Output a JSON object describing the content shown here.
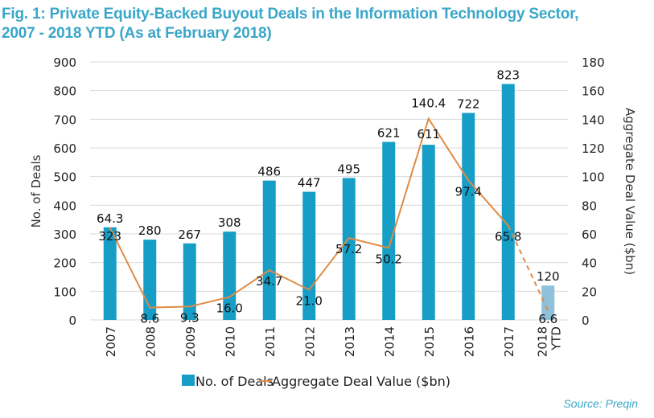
{
  "title_line1": "Fig. 1: Private Equity-Backed Buyout Deals in the Information Technology Sector,",
  "title_line2": "2007 - 2018 YTD (As at February 2018)",
  "source": "Source: Preqin",
  "colors": {
    "title": "#3aa6c8",
    "bar": "#169ec6",
    "bar_ytd": "#8fc1db",
    "line": "#e08b45",
    "grid": "#d9d9d9"
  },
  "chart_data": {
    "type": "bar",
    "title": "Fig. 1: Private Equity-Backed Buyout Deals in the Information Technology Sector, 2007 - 2018 YTD (As at February 2018)",
    "categories": [
      "2007",
      "2008",
      "2009",
      "2010",
      "2011",
      "2012",
      "2013",
      "2014",
      "2015",
      "2016",
      "2017",
      "2018 YTD"
    ],
    "series": [
      {
        "name": "No. of Deals",
        "type": "bar",
        "axis": "left",
        "values": [
          323,
          280,
          267,
          308,
          486,
          447,
          495,
          621,
          611,
          722,
          823,
          120
        ],
        "labels": [
          "323",
          "280",
          "267",
          "308",
          "486",
          "447",
          "495",
          "621",
          "611",
          "722",
          "823",
          "120"
        ]
      },
      {
        "name": "Aggregate Deal Value ($bn)",
        "type": "line",
        "axis": "right",
        "values": [
          64.3,
          8.6,
          9.3,
          16.0,
          34.7,
          21.0,
          57.2,
          50.2,
          140.4,
          97.4,
          65.8,
          6.6
        ],
        "labels": [
          "64.3",
          "8.6",
          "9.3",
          "16.0",
          "34.7",
          "21.0",
          "57.2",
          "50.2",
          "140.4",
          "97.4",
          "65.8",
          "6.6"
        ],
        "dashed_last_segment": true
      }
    ],
    "xlabel": "",
    "ylabel": "No. of Deals",
    "ylabel_right": "Aggregate Deal Value ($bn)",
    "ylim": [
      0,
      900
    ],
    "ylim_right": [
      0,
      180
    ],
    "yticks": [
      "0",
      "100",
      "200",
      "300",
      "400",
      "500",
      "600",
      "700",
      "800",
      "900"
    ],
    "yticks_right": [
      "0",
      "20",
      "40",
      "60",
      "80",
      "100",
      "120",
      "140",
      "160",
      "180"
    ],
    "grid": true,
    "legend_position": "bottom"
  }
}
